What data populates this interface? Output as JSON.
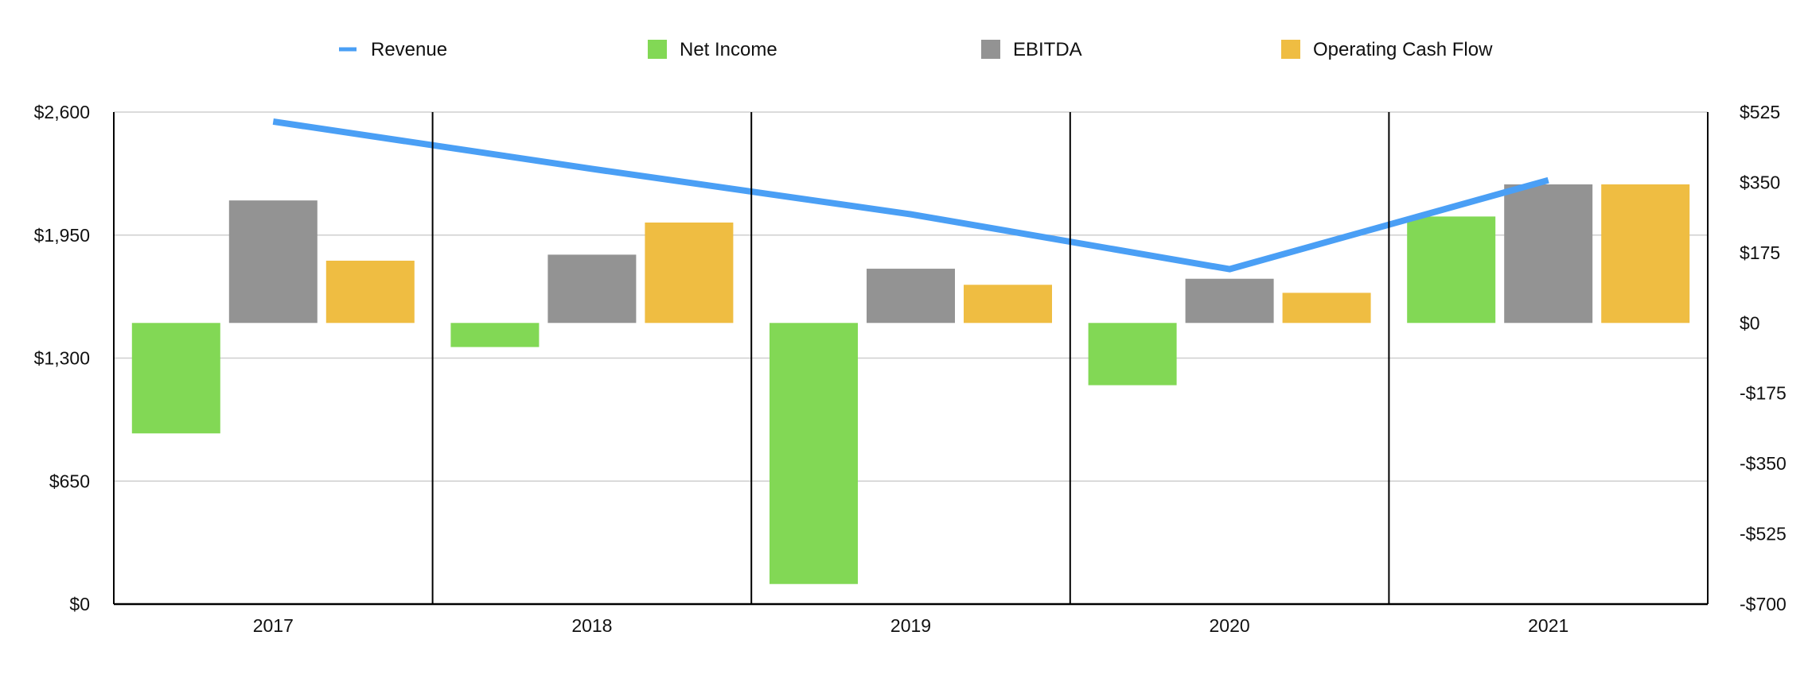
{
  "chart_data": {
    "type": "bar",
    "title": "",
    "xlabel": "",
    "ylabel": "",
    "categories": [
      "2017",
      "2018",
      "2019",
      "2020",
      "2021"
    ],
    "left_axis": {
      "ylim": [
        0,
        2600
      ],
      "ticks": [
        0,
        650,
        1300,
        1950,
        2600
      ],
      "tick_labels": [
        "$0",
        "$650",
        "$1,300",
        "$1,950",
        "$2,600"
      ]
    },
    "right_axis": {
      "ylim": [
        -700,
        525
      ],
      "ticks": [
        -700,
        -525,
        -350,
        -175,
        0,
        175,
        350,
        525
      ],
      "tick_labels": [
        "-$700",
        "-$525",
        "-$350",
        "-$175",
        "$0",
        "$175",
        "$350",
        "$525"
      ]
    },
    "series": [
      {
        "name": "Revenue",
        "type": "line",
        "axis": "left",
        "color": "#4a9ff5",
        "values": [
          2550,
          2300,
          2060,
          1770,
          2240
        ]
      },
      {
        "name": "Net Income",
        "type": "bar",
        "axis": "right",
        "color": "#82d855",
        "values": [
          -275,
          -60,
          -650,
          -155,
          265
        ]
      },
      {
        "name": "EBITDA",
        "type": "bar",
        "axis": "right",
        "color": "#939393",
        "values": [
          305,
          170,
          135,
          110,
          345
        ]
      },
      {
        "name": "Operating Cash Flow",
        "type": "bar",
        "axis": "right",
        "color": "#efbd42",
        "values": [
          155,
          250,
          95,
          75,
          345
        ]
      }
    ],
    "legend_position": "top-center",
    "grid": true
  }
}
